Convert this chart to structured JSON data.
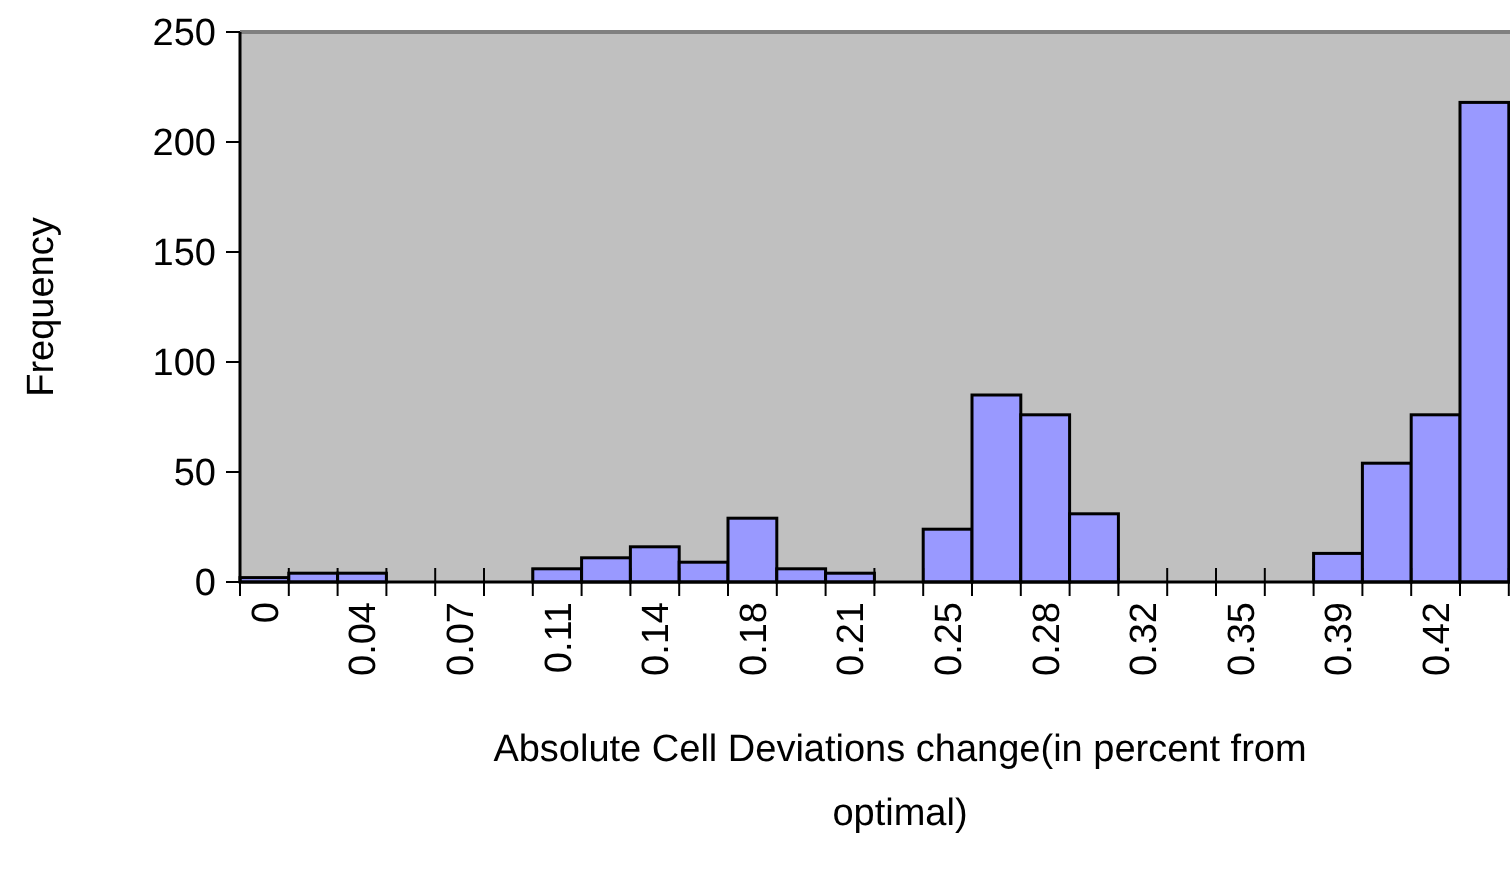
{
  "chart_data": {
    "type": "bar",
    "xlabel": "Absolute Cell Deviations change(in percent from optimal)",
    "ylabel": "Frequency",
    "categories": [
      "0",
      null,
      "0.04",
      null,
      "0.07",
      null,
      "0.11",
      null,
      "0.14",
      null,
      "0.18",
      null,
      "0.21",
      null,
      "0.25",
      null,
      "0.28",
      null,
      "0.32",
      null,
      "0.35",
      null,
      "0.39",
      null,
      "0.42",
      null
    ],
    "values": [
      2,
      4,
      4,
      0,
      0,
      0,
      6,
      11,
      16,
      9,
      29,
      6,
      4,
      0,
      24,
      85,
      76,
      31,
      0,
      0,
      0,
      0,
      13,
      54,
      76,
      218
    ],
    "color": "#9999ff",
    "ylim": [
      0,
      250
    ],
    "yticks": [
      0,
      50,
      100,
      150,
      200,
      250
    ],
    "grid": false
  }
}
